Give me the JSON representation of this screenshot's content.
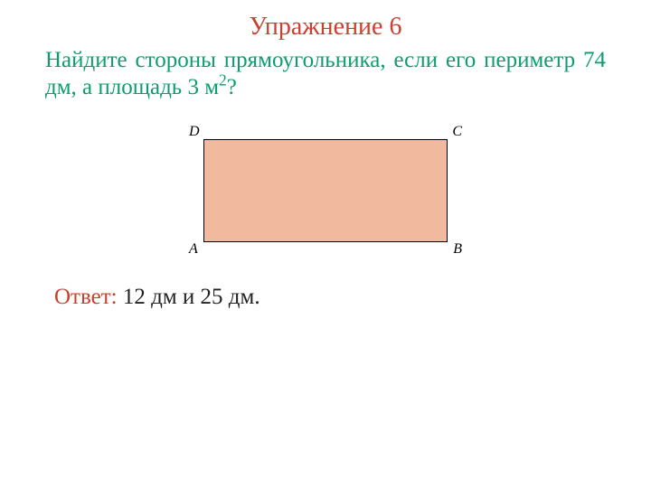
{
  "title": {
    "text": "Упражнение 6",
    "color": "#c94030"
  },
  "problem": {
    "text_part1": "Найдите стороны прямоугольника, если его периметр 74 дм, а площадь 3 м",
    "superscript": "2",
    "text_part2": "?",
    "color": "#0a9e6e"
  },
  "figure": {
    "fill_color": "#f1b99d",
    "border_color": "#000000",
    "vertices": {
      "top_left": "D",
      "top_right": "C",
      "bottom_left": "A",
      "bottom_right": "B"
    },
    "label_color": "#000000"
  },
  "answer": {
    "label": "Ответ:",
    "label_color": "#c94030",
    "value": " 12 дм и 25 дм.",
    "value_color": "#222222"
  }
}
